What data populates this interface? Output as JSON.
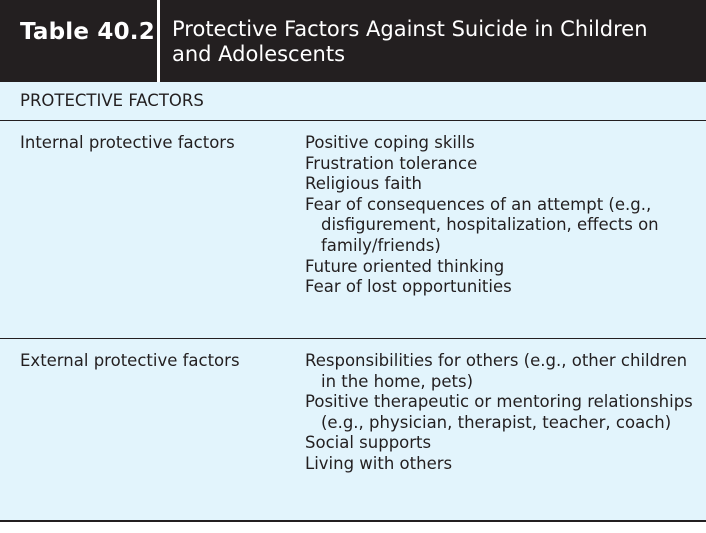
{
  "table": {
    "label": "Table 40.2",
    "title": "Protective Factors Against Suicide in Children and Adolescents",
    "section_header": "PROTECTIVE FACTORS",
    "groups": [
      {
        "category": "Internal protective factors",
        "items": [
          "Positive coping skills",
          "Frustration tolerance",
          "Religious faith",
          "Fear of consequences of an attempt (e.g., disfigurement, hospitalization, effects on family/friends)",
          "Future oriented thinking",
          "Fear of lost opportunities"
        ]
      },
      {
        "category": "External protective factors",
        "items": [
          "Responsibilities for others (e.g., other children in the home, pets)",
          "Positive therapeutic or mentoring relationships (e.g., physician, therapist, teacher, coach)",
          "Social supports",
          "Living with others"
        ]
      }
    ]
  }
}
